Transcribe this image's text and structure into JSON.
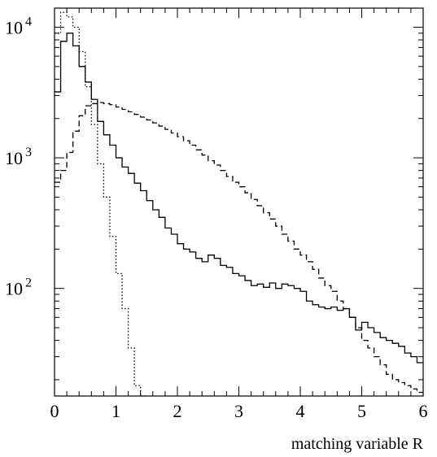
{
  "chart_data": {
    "type": "line",
    "title": "",
    "xlabel": "matching variable R",
    "ylabel": "",
    "xlim": [
      0,
      6
    ],
    "ylim": [
      15,
      14000
    ],
    "yscale": "log",
    "grid": false,
    "legend": "none",
    "bin_width": 0.1,
    "x_ticks": [
      {
        "value": 0,
        "label": "0"
      },
      {
        "value": 1,
        "label": "1"
      },
      {
        "value": 2,
        "label": "2"
      },
      {
        "value": 3,
        "label": "3"
      },
      {
        "value": 4,
        "label": "4"
      },
      {
        "value": 5,
        "label": "5"
      },
      {
        "value": 6,
        "label": "6"
      }
    ],
    "y_ticks": [
      {
        "value": 100,
        "base": "10",
        "exp": "2"
      },
      {
        "value": 1000,
        "base": "10",
        "exp": "3"
      },
      {
        "value": 10000,
        "base": "10",
        "exp": "4"
      }
    ],
    "series": [
      {
        "style": "solid",
        "bin_starts": [
          0.0,
          0.1,
          0.2,
          0.3,
          0.4,
          0.5,
          0.6,
          0.7,
          0.8,
          0.9,
          1.0,
          1.1,
          1.2,
          1.3,
          1.4,
          1.5,
          1.6,
          1.7,
          1.8,
          1.9,
          2.0,
          2.1,
          2.2,
          2.3,
          2.4,
          2.5,
          2.6,
          2.7,
          2.8,
          2.9,
          3.0,
          3.1,
          3.2,
          3.3,
          3.4,
          3.5,
          3.6,
          3.7,
          3.8,
          3.9,
          4.0,
          4.1,
          4.2,
          4.3,
          4.4,
          4.5,
          4.6,
          4.7,
          4.8,
          4.9,
          5.0,
          5.1,
          5.2,
          5.3,
          5.4,
          5.5,
          5.6,
          5.7,
          5.8,
          5.9
        ],
        "values": [
          3200,
          7800,
          9000,
          7200,
          5000,
          3800,
          2800,
          1900,
          1500,
          1250,
          1000,
          850,
          760,
          640,
          560,
          470,
          400,
          350,
          290,
          260,
          220,
          200,
          190,
          170,
          160,
          180,
          170,
          150,
          145,
          130,
          125,
          115,
          105,
          108,
          102,
          110,
          100,
          108,
          105,
          100,
          95,
          80,
          75,
          72,
          70,
          72,
          68,
          70,
          60,
          48,
          55,
          50,
          46,
          42,
          40,
          38,
          36,
          32,
          30,
          27
        ]
      },
      {
        "style": "dashed",
        "bin_starts": [
          0.0,
          0.1,
          0.2,
          0.3,
          0.4,
          0.5,
          0.6,
          0.7,
          0.8,
          0.9,
          1.0,
          1.1,
          1.2,
          1.3,
          1.4,
          1.5,
          1.6,
          1.7,
          1.8,
          1.9,
          2.0,
          2.1,
          2.2,
          2.3,
          2.4,
          2.5,
          2.6,
          2.7,
          2.8,
          2.9,
          3.0,
          3.1,
          3.2,
          3.3,
          3.4,
          3.5,
          3.6,
          3.7,
          3.8,
          3.9,
          4.0,
          4.1,
          4.2,
          4.3,
          4.4,
          4.5,
          4.6,
          4.7,
          4.8,
          4.9,
          5.0,
          5.1,
          5.2,
          5.3,
          5.4,
          5.5,
          5.6,
          5.7,
          5.8,
          5.9
        ],
        "values": [
          650,
          800,
          1100,
          1600,
          2100,
          2500,
          2600,
          2650,
          2600,
          2550,
          2450,
          2350,
          2250,
          2150,
          2050,
          1950,
          1850,
          1750,
          1650,
          1550,
          1450,
          1350,
          1250,
          1150,
          1050,
          950,
          880,
          800,
          720,
          650,
          600,
          540,
          480,
          430,
          380,
          340,
          300,
          260,
          230,
          200,
          180,
          160,
          140,
          120,
          105,
          95,
          80,
          70,
          60,
          50,
          40,
          35,
          30,
          26,
          22,
          20,
          19,
          18,
          17,
          16
        ]
      },
      {
        "style": "dotted",
        "bin_starts": [
          0.0,
          0.1,
          0.2,
          0.3,
          0.4,
          0.5,
          0.6,
          0.7,
          0.8,
          0.9,
          1.0,
          1.1,
          1.2,
          1.3,
          1.4
        ],
        "values": [
          9000,
          13000,
          12000,
          10000,
          6500,
          3500,
          1800,
          900,
          500,
          250,
          130,
          70,
          35,
          18,
          15
        ]
      }
    ]
  }
}
